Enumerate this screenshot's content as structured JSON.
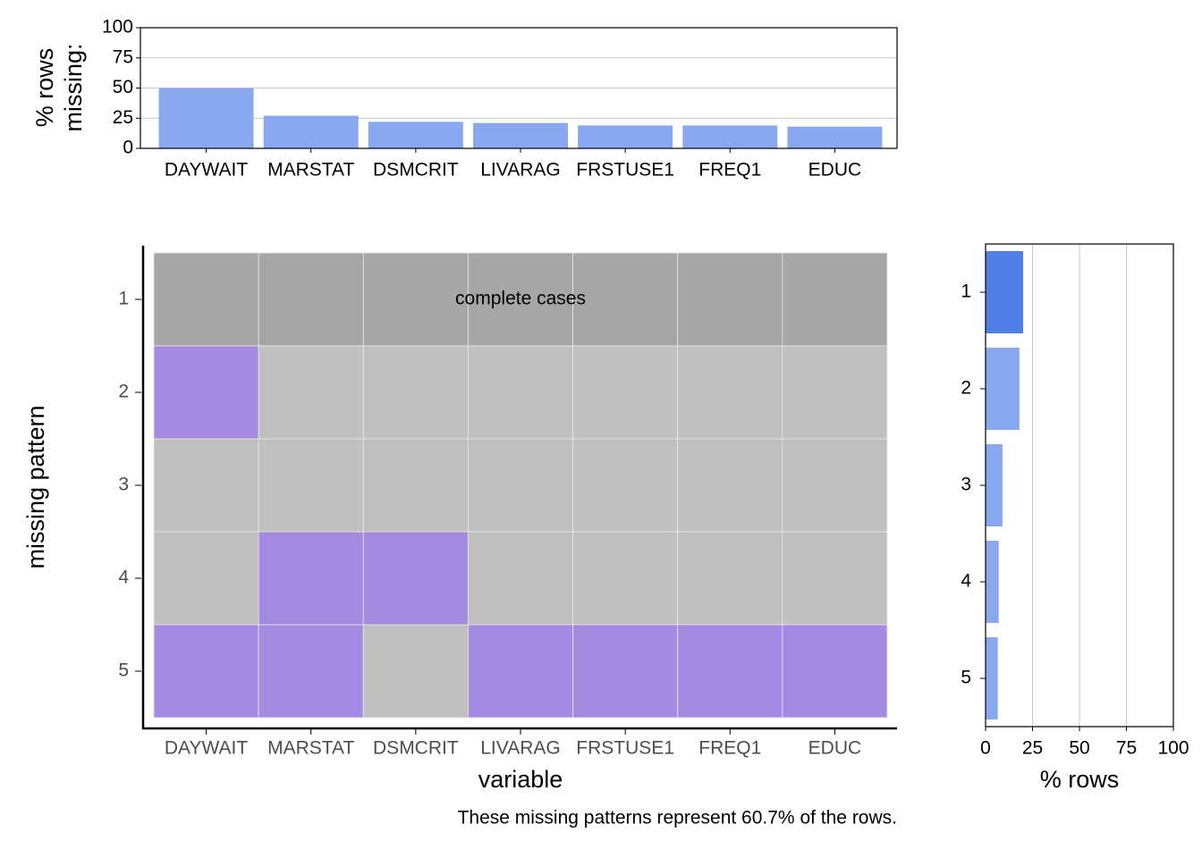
{
  "chart_data": [
    {
      "type": "bar",
      "ylabel": [
        "% rows",
        "missing:"
      ],
      "categories": [
        "DAYWAIT",
        "MARSTAT",
        "DSMCRIT",
        "LIVARAG",
        "FRSTUSE1",
        "FREQ1",
        "EDUC"
      ],
      "values": [
        50,
        27,
        22,
        21,
        19,
        19,
        18
      ],
      "color": "#8aa8f0",
      "ylim": [
        0,
        100
      ],
      "yticks": [
        0,
        25,
        50,
        75,
        100
      ],
      "grid": true
    },
    {
      "type": "heatmap",
      "xlabel": "variable",
      "ylabel": "missing pattern",
      "x": [
        "DAYWAIT",
        "MARSTAT",
        "DSMCRIT",
        "LIVARAG",
        "FRSTUSE1",
        "FREQ1",
        "EDUC"
      ],
      "y": [
        "1",
        "2",
        "3",
        "4",
        "5"
      ],
      "missing": [
        [
          0,
          0,
          0,
          0,
          0,
          0,
          0
        ],
        [
          1,
          0,
          0,
          0,
          0,
          0,
          0
        ],
        [
          0,
          0,
          0,
          0,
          0,
          0,
          0
        ],
        [
          0,
          1,
          1,
          0,
          0,
          0,
          0
        ],
        [
          1,
          1,
          0,
          1,
          1,
          1,
          1
        ]
      ],
      "colors": {
        "missing": "#a58ae2",
        "present": "#c0c0c0",
        "complete": "#a6a6a6"
      },
      "complete_pattern": "1",
      "annotation": "complete cases",
      "caption": "These missing patterns represent 60.7% of the rows."
    },
    {
      "type": "barh",
      "xlabel": "% rows",
      "categories": [
        "1",
        "2",
        "3",
        "4",
        "5"
      ],
      "values": [
        20,
        18,
        9,
        7,
        6.5
      ],
      "colors": [
        "#5080e6",
        "#8aa8f0",
        "#8aa8f0",
        "#8aa8f0",
        "#8aa8f0"
      ],
      "xlim": [
        0,
        100
      ],
      "xticks": [
        0,
        25,
        50,
        75,
        100
      ],
      "grid": true
    }
  ]
}
